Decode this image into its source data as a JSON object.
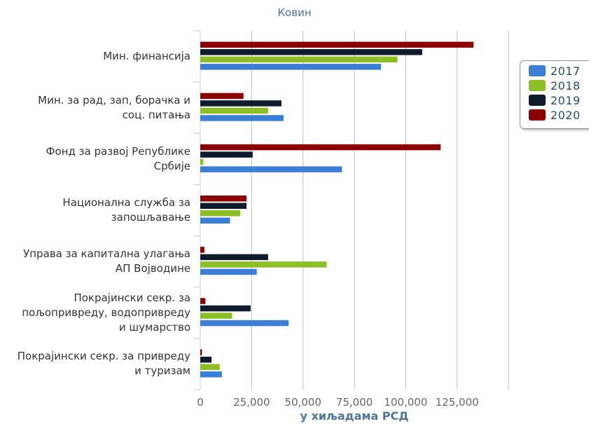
{
  "title": "",
  "subtitle": "Ковин",
  "chart_data": {
    "type": "bar",
    "orientation": "horizontal",
    "categories": [
      [
        "Мин. финансија"
      ],
      [
        "Мин. за рад, зап, борачка и",
        "соц. питања"
      ],
      [
        "Фонд за развој Републике",
        "Србије"
      ],
      [
        "Национална служба за",
        "запошљавање"
      ],
      [
        "Управа за капитална улагања",
        "АП Војводине"
      ],
      [
        "Покрајински секр. за",
        "пољопривреду, водопривреду",
        "и шумарство"
      ],
      [
        "Покрајински секр. за привреду",
        "и туризам"
      ]
    ],
    "series": [
      {
        "name": "2017",
        "color": "#3a7fd5",
        "values": [
          88000,
          40500,
          69000,
          14500,
          27500,
          43000,
          10500
        ]
      },
      {
        "name": "2018",
        "color": "#8cbf26",
        "values": [
          96000,
          33000,
          1500,
          19500,
          61500,
          15500,
          9500
        ]
      },
      {
        "name": "2019",
        "color": "#0e1b2c",
        "values": [
          108000,
          39500,
          25500,
          22500,
          33000,
          24500,
          5500
        ]
      },
      {
        "name": "2020",
        "color": "#8b0000",
        "values": [
          133000,
          21000,
          117000,
          22500,
          2000,
          2500,
          800
        ]
      }
    ],
    "xlim": [
      0,
      150000
    ],
    "xticks": [
      "0",
      "25,000",
      "50,000",
      "75,000",
      "100,000",
      "125,000"
    ],
    "xlabel": "у хиљадама РСД",
    "ylabel": "",
    "grid": true,
    "legend_position": "right"
  }
}
